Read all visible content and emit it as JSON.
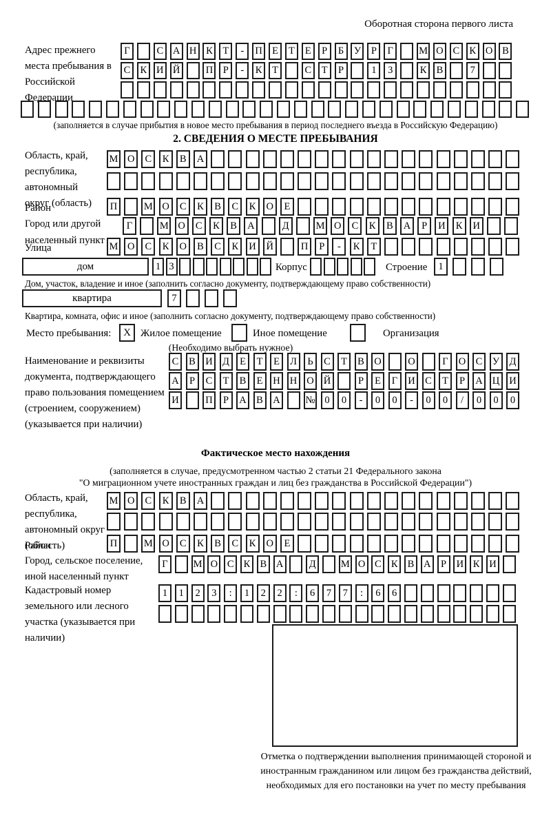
{
  "page": {
    "side_note": "Оборотная сторона первого листа"
  },
  "prev": {
    "label": "Адрес прежнего места пребывания в Российской Федерации",
    "rows": {
      "r1": "Г САНКТ-ПЕТЕРБУРГ МОСКОВ",
      "r2": "СКИЙ ПР-КТ СТР 13 КВ 7  ",
      "r3": "                        ",
      "r4": "                              "
    },
    "note": "(заполняется в случае прибытия в новое место пребывания в период последнего въезда в Российскую Федерацию)"
  },
  "s2": {
    "title": "2. СВЕДЕНИЯ О МЕСТЕ ПРЕБЫВАНИЯ",
    "region": {
      "label": "Область, край, республика, автономный округ (область)",
      "rows": {
        "r1": "МОСКВА                  ",
        "r2": "                        "
      }
    },
    "district": {
      "label": "Район",
      "row": "П МОСКВСКОЕ             "
    },
    "city": {
      "label": "Город или другой населенный пункт",
      "row": "Г МОСКВА Д МОСКВАРИКИ  "
    },
    "street": {
      "label": "Улица",
      "row": "МОСКОВСКИЙ ПР-КТ        "
    },
    "house": {
      "box_label": "дом",
      "cells": "13       ",
      "korpus_label": "Корпус",
      "korpus_cells": "     ",
      "stroenie_label": "Строение",
      "stroenie_cells": "1   ",
      "note": "Дом, участок, владение и иное (заполнить согласно документу, подтверждающему право собственности)"
    },
    "apartment": {
      "box_label": "квартира",
      "cells": "7   ",
      "note": "Квартира, комната, офис и иное (заполнить согласно документу, подтверждающему право собственности)"
    },
    "stay": {
      "label": "Место пребывания:",
      "options": [
        {
          "label": "Жилое помещение",
          "checked": "X"
        },
        {
          "label": "Иное помещение",
          "checked": ""
        },
        {
          "label": "Организация",
          "checked": ""
        }
      ],
      "note": "(Необходимо выбрать нужное)"
    },
    "document": {
      "label": "Наименование и реквизиты документа, подтверждающего право пользования помещением (строением, сооружением) (указывается при наличии)",
      "rows": {
        "r1": "СВИДЕТЕЛЬСТВО О ГОСУД",
        "r2": "АРСТВЕННОЙ РЕГИСТРАЦИ",
        "r3": "И ПРАВА №00-00-00/000"
      }
    }
  },
  "fact": {
    "title": "Фактическое место нахождения",
    "note1": "(заполняется в случае, предусмотренном частью 2 статьи 21 Федерального закона",
    "note2": "\"О миграционном учете иностранных граждан и лиц без гражданства в Российской Федерации\")",
    "region": {
      "label": "Область, край, республика, автономный округ (область)",
      "rows": {
        "r1": "МОСКВА                  ",
        "r2": "                        "
      }
    },
    "district": {
      "label": "Район",
      "row": "П МОСКВСКОЕ             "
    },
    "city": {
      "label": "Город, сельское поселение, иной населенный пункт",
      "row": "Г МОСКВА Д МОСКВАРИКИ "
    },
    "cadastral": {
      "label": "Кадастровый номер земельного или лесного участка (указывается при наличии)",
      "rows": {
        "r1": "1123:122:677:66       ",
        "r2": "                      "
      }
    },
    "stamp_note": "Отметка о подтверждении выполнения принимающей стороной и иностранным гражданином или лицом без гражданства действий, необходимых для его постановки на учет по месту пребывания"
  }
}
